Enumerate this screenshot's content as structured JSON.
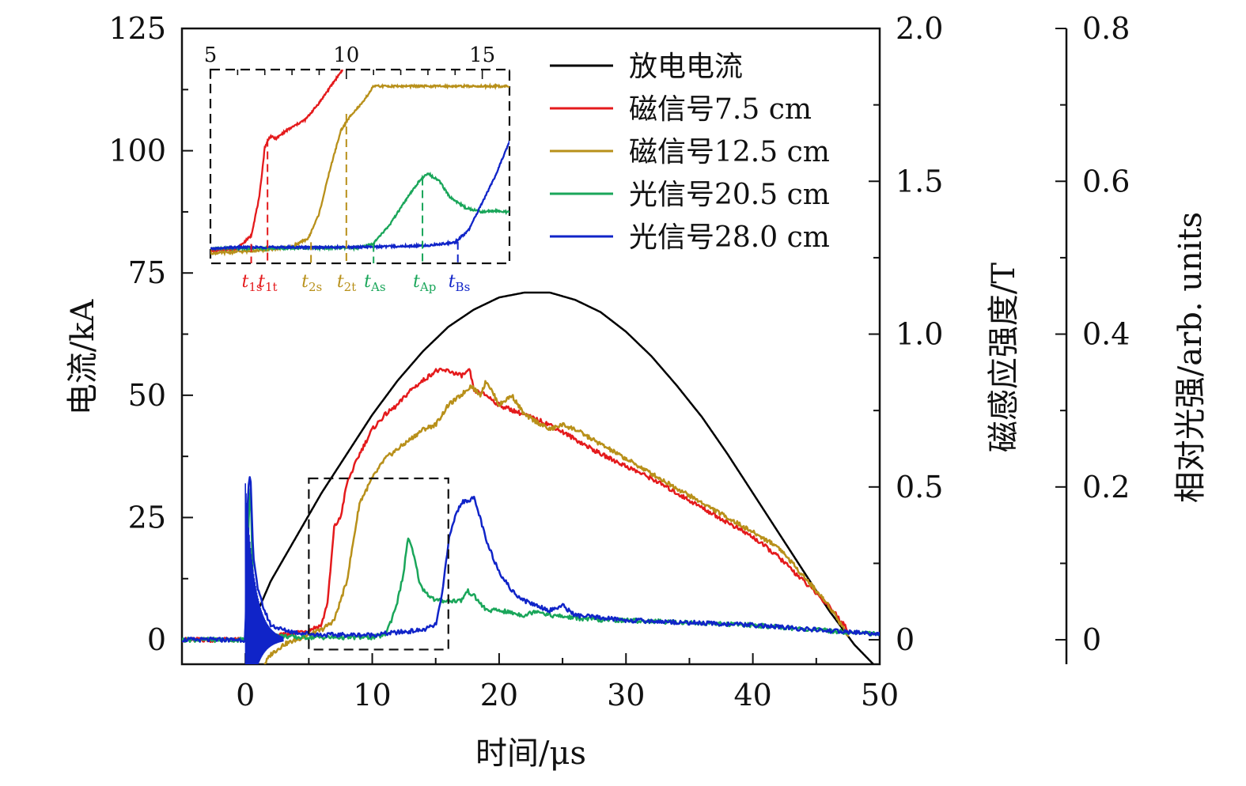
{
  "chart_data": {
    "type": "line",
    "title": "",
    "xlabel": "时间/μs",
    "ylabel_left": "电流/kA",
    "ylabel_right1": "磁感应强度/T",
    "ylabel_right2": "相对光强/arb. units",
    "xlim": [
      -5,
      50
    ],
    "ylim_left": [
      -5,
      125
    ],
    "ylim_right1": [
      0,
      2.0
    ],
    "ylim_right2": [
      0,
      0.8
    ],
    "x_ticks": [
      "0",
      "10",
      "20",
      "30",
      "40",
      "50"
    ],
    "y_ticks_left": [
      "0",
      "25",
      "50",
      "75",
      "100",
      "125"
    ],
    "y_ticks_right1": [
      "0",
      "0.5",
      "1.0",
      "1.5",
      "2.0"
    ],
    "y_ticks_right2": [
      "0",
      "0.2",
      "0.4",
      "0.6",
      "0.8"
    ],
    "legend_placement": "top-right",
    "series": [
      {
        "name": "放电电流",
        "color": "#000000",
        "x": [
          0,
          2,
          4,
          6,
          8,
          10,
          12,
          14,
          16,
          18,
          20,
          22,
          24,
          26,
          28,
          30,
          32,
          34,
          36,
          38,
          40,
          42,
          44,
          46,
          48,
          49.5
        ],
        "y": [
          0,
          12,
          21,
          30,
          38,
          46,
          53,
          59,
          64,
          67.5,
          70,
          71,
          71,
          69.5,
          67,
          63,
          58,
          52,
          45.5,
          38,
          30,
          22,
          14,
          6,
          -1,
          -5
        ]
      },
      {
        "name": "磁信号7.5 cm",
        "color": "#e41a1c",
        "x": [
          -5,
          0,
          2,
          4,
          5,
          6,
          6.5,
          7,
          7.5,
          8,
          9,
          10,
          11,
          12,
          13,
          14,
          15,
          16,
          17,
          17.7,
          18,
          19,
          20,
          22,
          24,
          26,
          28,
          30,
          32,
          34,
          36,
          38,
          40,
          42,
          44,
          46,
          47.5
        ],
        "y": [
          0,
          0,
          0.5,
          1.5,
          2,
          3,
          8,
          23,
          25,
          32,
          38,
          43,
          46,
          48,
          51,
          53,
          55,
          55,
          54,
          55,
          51,
          50,
          48,
          46,
          44,
          41,
          38,
          35.5,
          33,
          30,
          27,
          24,
          21,
          17,
          12,
          7,
          2
        ]
      },
      {
        "name": "磁信号12.5 cm",
        "color": "#b8901a",
        "x": [
          1.5,
          2,
          3,
          4,
          5,
          6,
          7,
          8,
          8.5,
          9,
          10,
          11,
          12,
          13,
          14,
          15,
          16,
          17,
          17.8,
          18.5,
          19,
          20,
          21,
          22,
          24,
          25,
          26,
          28,
          30,
          32,
          34,
          36,
          38,
          40,
          42,
          44,
          46,
          47.5
        ],
        "y": [
          -5,
          -3,
          -1,
          0,
          1,
          2,
          4,
          12,
          20,
          28,
          33,
          37,
          39,
          41,
          43,
          44,
          48,
          50,
          52,
          50,
          53,
          48,
          50,
          46,
          43,
          44,
          43,
          40,
          37,
          34,
          31,
          28,
          25,
          22,
          19,
          13,
          7,
          1
        ]
      },
      {
        "name": "光信号20.5 cm",
        "color": "#1aa65a",
        "x": [
          -5,
          0,
          0.2,
          0.4,
          0.6,
          1,
          2,
          4,
          6,
          8,
          10,
          11,
          11.5,
          12,
          12.5,
          12.8,
          13.2,
          13.8,
          14.5,
          15,
          16,
          17,
          17.5,
          18,
          19,
          20,
          22,
          23,
          24,
          26,
          28,
          30,
          35,
          40,
          45,
          48,
          50
        ],
        "y": [
          0,
          0,
          20,
          33,
          10,
          3,
          1,
          0.5,
          0.5,
          0.5,
          0.5,
          1,
          4,
          8,
          14,
          21,
          18,
          11,
          9,
          8,
          8,
          8,
          10,
          9,
          6,
          6,
          5,
          6,
          5,
          4.5,
          4,
          4,
          3.5,
          3,
          2,
          1.5,
          1.2
        ]
      },
      {
        "name": "光信号28.0 cm",
        "color": "#1024c8",
        "x": [
          -5,
          0,
          0.2,
          0.4,
          0.6,
          1,
          1.5,
          2,
          3,
          4,
          6,
          8,
          10,
          12,
          14,
          15,
          15.5,
          16,
          16.5,
          17,
          18,
          18.5,
          19,
          20,
          21,
          22,
          23,
          24,
          25,
          26,
          30,
          35,
          40,
          45,
          48,
          50
        ],
        "y": [
          0,
          0,
          30,
          34,
          18,
          10,
          6,
          3,
          2,
          1.5,
          1,
          1,
          1,
          1.5,
          2,
          3,
          9,
          20,
          25,
          28,
          29,
          25,
          20,
          14,
          10,
          8,
          7,
          6,
          7,
          5,
          4,
          3.5,
          3,
          2,
          1.5,
          1.2
        ]
      }
    ],
    "inset": {
      "xlim": [
        5,
        16
      ],
      "x_ticks": [
        "5",
        "10",
        "15"
      ],
      "markers": [
        {
          "label": "t",
          "sub": "1s",
          "x": 6.5,
          "color": "#e41a1c"
        },
        {
          "label": "t",
          "sub": "1t",
          "x": 7.1,
          "color": "#e41a1c"
        },
        {
          "label": "t",
          "sub": "2s",
          "x": 8.7,
          "color": "#b8901a"
        },
        {
          "label": "t",
          "sub": "2t",
          "x": 10.0,
          "color": "#b8901a"
        },
        {
          "label": "t",
          "sub": "As",
          "x": 11.0,
          "color": "#1aa65a"
        },
        {
          "label": "t",
          "sub": "Ap",
          "x": 12.8,
          "color": "#1aa65a"
        },
        {
          "label": "t",
          "sub": "Bs",
          "x": 14.1,
          "color": "#1024c8"
        }
      ]
    }
  }
}
